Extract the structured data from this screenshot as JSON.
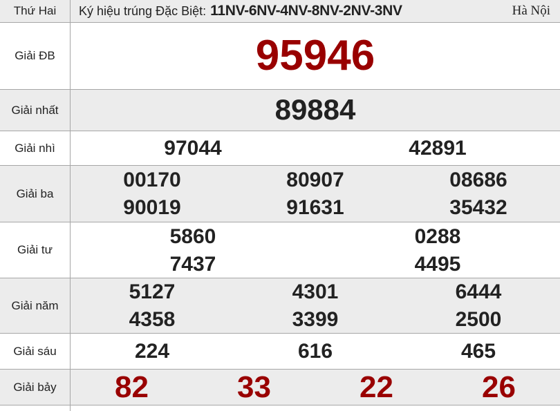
{
  "header": {
    "day": "Thứ Hai",
    "sign_label": "Ký hiệu trúng Đặc Biệt:",
    "sign_value": "11NV-6NV-4NV-8NV-2NV-3NV",
    "region": "Hà Nội"
  },
  "prizes": [
    {
      "label": "Giải ĐB",
      "numbers": [
        [
          "95946"
        ]
      ]
    },
    {
      "label": "Giải nhất",
      "numbers": [
        [
          "89884"
        ]
      ]
    },
    {
      "label": "Giải nhì",
      "numbers": [
        [
          "97044",
          "42891"
        ]
      ]
    },
    {
      "label": "Giải ba",
      "numbers": [
        [
          "00170",
          "80907",
          "08686"
        ],
        [
          "90019",
          "91631",
          "35432"
        ]
      ]
    },
    {
      "label": "Giải tư",
      "numbers": [
        [
          "5860",
          "0288"
        ],
        [
          "7437",
          "4495"
        ]
      ]
    },
    {
      "label": "Giải năm",
      "numbers": [
        [
          "5127",
          "4301",
          "6444"
        ],
        [
          "4358",
          "3399",
          "2500"
        ]
      ]
    },
    {
      "label": "Giải sáu",
      "numbers": [
        [
          "224",
          "616",
          "465"
        ]
      ]
    },
    {
      "label": "Giải bảy",
      "numbers": [
        [
          "82",
          "33",
          "22",
          "26"
        ]
      ]
    }
  ],
  "colors": {
    "accent_red": "#990000",
    "number_black": "#222222",
    "row_gray": "#ececec",
    "border_gray": "#a6a6a6"
  }
}
